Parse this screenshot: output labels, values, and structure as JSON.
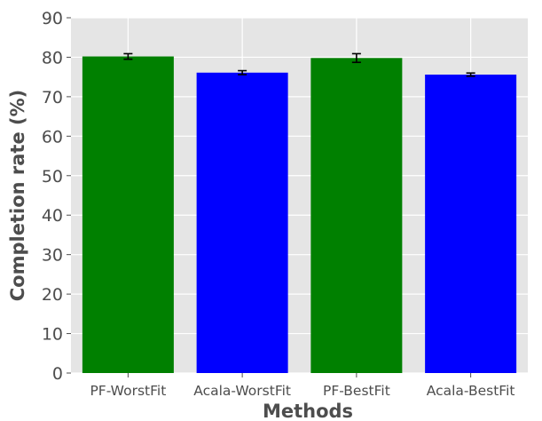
{
  "chart_data": {
    "type": "bar",
    "title": "",
    "xlabel": "Methods",
    "ylabel": "Completion rate (%)",
    "categories": [
      "PF-WorstFit",
      "Acala-WorstFit",
      "PF-BestFit",
      "Acala-BestFit"
    ],
    "values": [
      80.2,
      76.1,
      79.8,
      75.6
    ],
    "errors": [
      0.7,
      0.5,
      1.1,
      0.4
    ],
    "colors": [
      "#008000",
      "#0000ff",
      "#008000",
      "#0000ff"
    ],
    "ylim": [
      0,
      90
    ],
    "yticks": [
      0,
      10,
      20,
      30,
      40,
      50,
      60,
      70,
      80,
      90
    ],
    "grid": true,
    "background": "#e5e5e5"
  }
}
